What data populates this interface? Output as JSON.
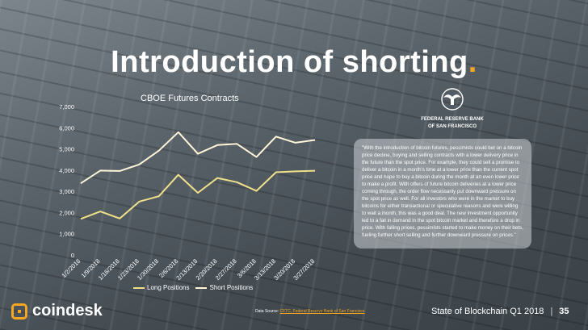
{
  "slide": {
    "title": "Introduction of shorting",
    "title_dot": ".",
    "accent_color": "#f5a623"
  },
  "fed_logo": {
    "line1": "FEDERAL RESERVE BANK",
    "line2": "OF SAN FRANCISCO",
    "icon": "fed-eagle-seal-icon"
  },
  "quote": "\"With the introduction of bitcoin futures, pessimists could bet on a bitcoin price decline, buying and selling contracts with a lower delivery price in the future than the spot price. For example, they could sell a promise to deliver a bitcoin in a month's time at a lower price than the current spot price and hope to buy a bitcoin during the month at an even lower price to make a profit. With offers of future bitcoin deliveries at a lower price coming through, the order flow necessarily put downward pressure on the spot price as well. For all investors who were in the market to buy bitcoins for either transactional or speculative reasons and were willing to wait a month, this was a good deal. The new investment opportunity led to a fall in demand in the spot bitcoin market and therefore a drop in price. With falling prices, pessimists started to make money on their bets, fueling further short selling and further downward pressure on prices.\"",
  "footer": {
    "brand": "coindesk",
    "source_label": "Data Source: ",
    "source_link": "CFTC, Federal Reserve Bank of San Francisco",
    "report": "State of Blockchain Q1 2018",
    "separator": "|",
    "page": "35"
  },
  "chart_data": {
    "type": "line",
    "title": "CBOE Futures Contracts",
    "categories": [
      "1/2/2018",
      "1/9/2018",
      "1/16/2018",
      "1/23/2018",
      "1/30/2018",
      "2/6/2018",
      "2/13/2018",
      "2/20/2018",
      "2/27/2018",
      "3/6/2018",
      "3/13/2018",
      "3/20/2018",
      "3/27/2018"
    ],
    "series": [
      {
        "name": "Long Positions",
        "color": "#f0e08a",
        "values": [
          1700,
          2050,
          1720,
          2520,
          2770,
          3780,
          2930,
          3630,
          3430,
          3020,
          3900,
          3940,
          3970
        ]
      },
      {
        "name": "Short Positions",
        "color": "#fff5d8",
        "values": [
          3380,
          3980,
          3960,
          4270,
          4920,
          5790,
          4770,
          5180,
          5240,
          4620,
          5580,
          5290,
          5420
        ]
      }
    ],
    "ylim": [
      0,
      7000
    ],
    "yticks": [
      "0",
      "1,000",
      "2,000",
      "3,000",
      "4,000",
      "5,000",
      "6,000",
      "7,000"
    ],
    "grid": false,
    "legend": "bottom"
  }
}
